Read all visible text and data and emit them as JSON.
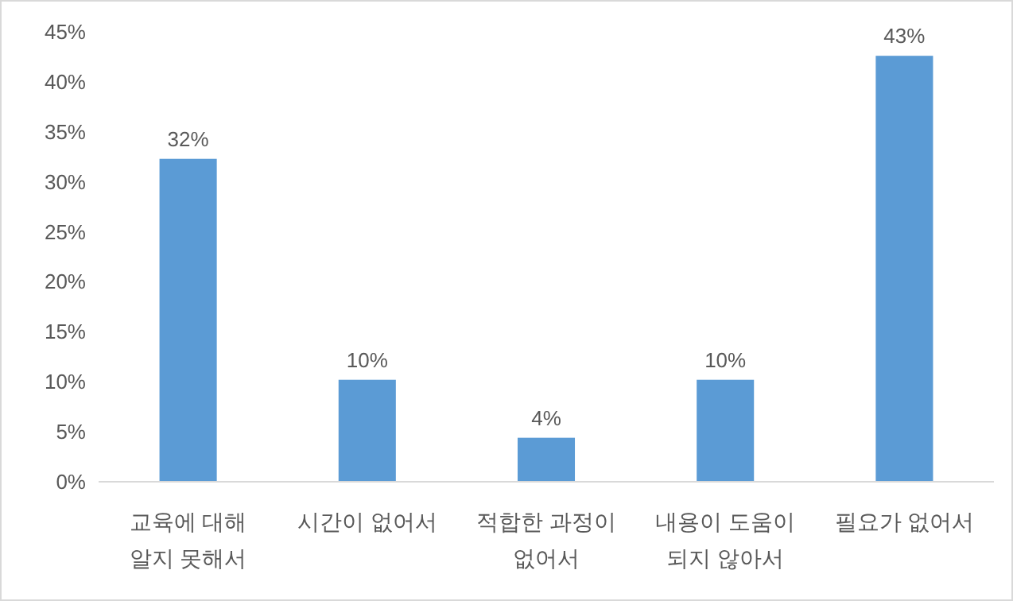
{
  "chart_data": {
    "type": "bar",
    "categories": [
      "교육에 대해 알지 못해서",
      "시간이 없어서",
      "적합한 과정이 없어서",
      "내용이 도움이 되지 않아서",
      "필요가 없어서"
    ],
    "values": [
      32.3,
      10.2,
      4.4,
      10.2,
      42.6
    ],
    "value_labels": [
      "32%",
      "10%",
      "4%",
      "10%",
      "43%"
    ],
    "color": "#5b9bd5",
    "ylim": [
      0,
      45
    ],
    "yticks": [
      {
        "value": 0,
        "label": "0%"
      },
      {
        "value": 5,
        "label": "5%"
      },
      {
        "value": 10,
        "label": "10%"
      },
      {
        "value": 15,
        "label": "15%"
      },
      {
        "value": 20,
        "label": "20%"
      },
      {
        "value": 25,
        "label": "25%"
      },
      {
        "value": 30,
        "label": "30%"
      },
      {
        "value": 35,
        "label": "35%"
      },
      {
        "value": 40,
        "label": "40%"
      },
      {
        "value": 45,
        "label": "45%"
      }
    ],
    "grid": false
  }
}
